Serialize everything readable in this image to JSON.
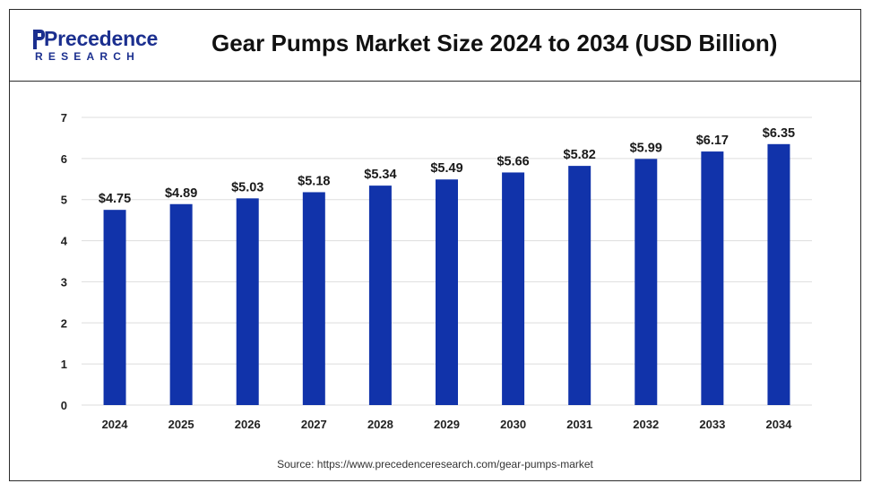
{
  "header": {
    "logo_main": "Precedence",
    "logo_sub": "RESEARCH",
    "title": "Gear Pumps Market Size 2024 to 2034 (USD Billion)"
  },
  "source": "Source: https://www.precedenceresearch.com/gear-pumps-market",
  "colors": {
    "bar": "#1133aa",
    "brand": "#1b2f8f",
    "grid": "#dddddd"
  },
  "chart_data": {
    "type": "bar",
    "title": "Gear Pumps Market Size 2024 to 2034 (USD Billion)",
    "categories": [
      "2024",
      "2025",
      "2026",
      "2027",
      "2028",
      "2029",
      "2030",
      "2031",
      "2032",
      "2033",
      "2034"
    ],
    "values": [
      4.75,
      4.89,
      5.03,
      5.18,
      5.34,
      5.49,
      5.66,
      5.82,
      5.99,
      6.17,
      6.35
    ],
    "data_labels": [
      "$4.75",
      "$4.89",
      "$5.03",
      "$5.18",
      "$5.34",
      "$5.49",
      "$5.66",
      "$5.82",
      "$5.99",
      "$6.17",
      "$6.35"
    ],
    "yticks": [
      "0",
      "1",
      "2",
      "3",
      "4",
      "5",
      "6",
      "7"
    ],
    "xlabel": "",
    "ylabel": "",
    "ylim": [
      0,
      7
    ],
    "grid": true,
    "legend": "none"
  }
}
